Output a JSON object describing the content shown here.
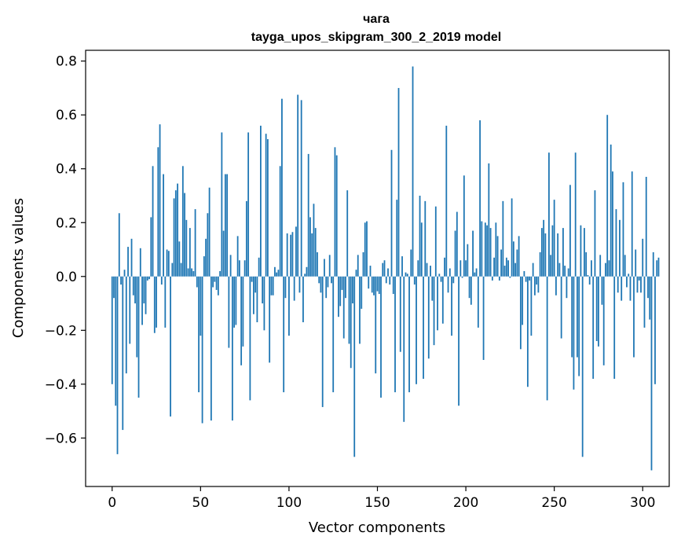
{
  "chart_data": {
    "type": "bar",
    "title_line1": "чага",
    "title_line2": "tayga_upos_skipgram_300_2_2019 model",
    "xlabel": "Vector components",
    "ylabel": "Components values",
    "xlim": [
      -15,
      315
    ],
    "ylim": [
      -0.78,
      0.84
    ],
    "xticks": [
      0,
      50,
      100,
      150,
      200,
      250,
      300
    ],
    "xtick_labels": [
      "0",
      "50",
      "100",
      "150",
      "200",
      "250",
      "300"
    ],
    "yticks": [
      -0.6,
      -0.4,
      -0.2,
      0.0,
      0.2,
      0.4,
      0.6,
      0.8
    ],
    "ytick_labels": [
      "−0.6",
      "−0.4",
      "−0.2",
      "0.0",
      "0.2",
      "0.4",
      "0.6",
      "0.8"
    ],
    "bar_color": "#1f77b4",
    "values": [
      -0.4,
      -0.08,
      -0.48,
      -0.66,
      0.235,
      -0.03,
      -0.57,
      0.025,
      -0.36,
      0.11,
      -0.25,
      0.14,
      -0.07,
      -0.1,
      -0.3,
      -0.45,
      0.105,
      -0.18,
      -0.1,
      -0.14,
      -0.015,
      -0.01,
      0.22,
      0.41,
      -0.21,
      -0.19,
      0.48,
      0.565,
      -0.03,
      0.38,
      -0.19,
      0.1,
      0.095,
      -0.52,
      0.05,
      0.29,
      0.32,
      0.345,
      0.13,
      0.05,
      0.41,
      0.31,
      0.21,
      0.03,
      0.18,
      0.03,
      0.02,
      0.25,
      -0.04,
      -0.43,
      -0.22,
      -0.545,
      0.075,
      0.14,
      0.235,
      0.33,
      -0.535,
      -0.04,
      -0.02,
      -0.05,
      -0.07,
      0.02,
      0.535,
      0.17,
      0.38,
      0.38,
      -0.265,
      0.08,
      -0.535,
      -0.19,
      -0.18,
      0.15,
      0.06,
      -0.33,
      -0.26,
      0.06,
      0.28,
      0.535,
      -0.46,
      -0.02,
      -0.14,
      -0.06,
      -0.17,
      0.07,
      0.56,
      -0.1,
      -0.2,
      0.53,
      0.51,
      -0.32,
      -0.07,
      -0.07,
      0.035,
      0.015,
      0.025,
      0.41,
      0.66,
      -0.43,
      -0.08,
      0.16,
      -0.22,
      0.155,
      0.165,
      -0.09,
      0.185,
      0.675,
      -0.06,
      0.655,
      -0.17,
      0.01,
      0.035,
      0.455,
      0.22,
      0.16,
      0.27,
      0.18,
      0.09,
      -0.025,
      -0.06,
      -0.485,
      0.065,
      -0.08,
      -0.04,
      0.08,
      -0.025,
      -0.43,
      0.48,
      0.45,
      -0.15,
      -0.11,
      -0.05,
      -0.23,
      -0.08,
      0.32,
      -0.25,
      -0.34,
      -0.1,
      -0.67,
      0.025,
      0.08,
      -0.25,
      -0.12,
      0.09,
      0.2,
      0.205,
      -0.045,
      0.04,
      -0.06,
      -0.07,
      -0.36,
      -0.055,
      -0.065,
      -0.45,
      0.05,
      0.06,
      -0.025,
      0.03,
      -0.03,
      0.47,
      -0.065,
      -0.43,
      0.285,
      0.7,
      -0.28,
      0.075,
      -0.54,
      0.015,
      0.01,
      -0.43,
      0.1,
      0.78,
      -0.03,
      -0.4,
      0.06,
      0.3,
      0.2,
      -0.38,
      0.28,
      0.05,
      -0.305,
      0.04,
      -0.09,
      -0.255,
      0.26,
      -0.2,
      0.01,
      -0.02,
      -0.175,
      0.07,
      0.56,
      -0.06,
      0.03,
      -0.22,
      -0.025,
      0.17,
      0.24,
      -0.48,
      0.06,
      -0.005,
      0.375,
      0.06,
      0.12,
      -0.08,
      -0.105,
      0.17,
      0.015,
      0.03,
      -0.19,
      0.58,
      0.205,
      -0.31,
      0.2,
      0.19,
      0.42,
      0.18,
      -0.015,
      0.07,
      0.2,
      0.15,
      -0.015,
      0.1,
      0.28,
      0.04,
      0.07,
      0.06,
      -0.005,
      0.29,
      0.13,
      0.05,
      0.1,
      0.15,
      -0.27,
      -0.18,
      0.02,
      -0.02,
      -0.41,
      -0.015,
      -0.22,
      0.05,
      -0.07,
      -0.03,
      -0.06,
      0.09,
      0.18,
      0.21,
      0.16,
      -0.46,
      0.46,
      0.08,
      0.19,
      0.285,
      -0.07,
      0.16,
      0.05,
      -0.23,
      0.18,
      0.04,
      -0.08,
      0.03,
      0.34,
      -0.3,
      -0.42,
      0.46,
      -0.3,
      -0.37,
      0.19,
      -0.67,
      0.18,
      0.09,
      0.005,
      -0.03,
      0.06,
      -0.38,
      0.32,
      -0.24,
      -0.26,
      0.08,
      -0.105,
      -0.33,
      0.05,
      0.6,
      0.06,
      0.49,
      0.39,
      -0.38,
      0.25,
      -0.06,
      0.21,
      -0.09,
      0.35,
      0.08,
      -0.04,
      0.01,
      -0.09,
      0.39,
      -0.3,
      0.1,
      -0.06,
      -0.015,
      -0.06,
      0.14,
      -0.19,
      0.37,
      -0.08,
      -0.16,
      -0.72,
      0.09,
      -0.4,
      0.06,
      0.07
    ]
  }
}
